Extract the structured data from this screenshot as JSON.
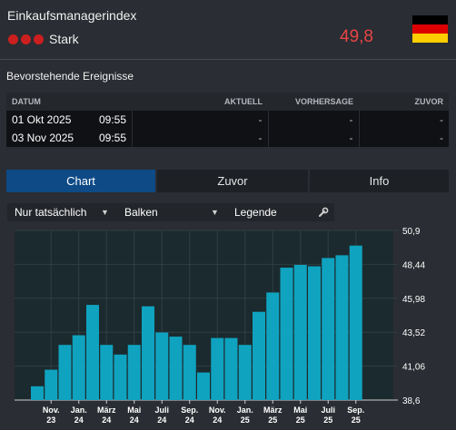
{
  "header": {
    "title": "Einkaufsmanagerindex",
    "importance_label": "Stark",
    "value": "49,8",
    "flag_colors": [
      "#000000",
      "#dd0000",
      "#ffce00"
    ]
  },
  "events": {
    "title": "Bevorstehende Ereignisse",
    "columns": [
      "DATUM",
      "",
      "AKTUELL",
      "VORHERSAGE",
      "ZUVOR"
    ],
    "rows": [
      {
        "date": "01 Okt 2025",
        "time": "09:55",
        "actual": "-",
        "forecast": "-",
        "previous": "-"
      },
      {
        "date": "03 Nov 2025",
        "time": "09:55",
        "actual": "-",
        "forecast": "-",
        "previous": "-"
      }
    ]
  },
  "tabs": [
    {
      "label": "Chart"
    },
    {
      "label": "Zuvor"
    },
    {
      "label": "Info"
    }
  ],
  "toolbar": {
    "filter": "Nur tatsächlich",
    "type": "Balken",
    "legend": "Legende",
    "wrench_icon": "wrench-icon",
    "caret_icon": "caret-down-icon"
  },
  "chart_data": {
    "type": "bar",
    "color": "#0fa3c0",
    "y_ticks": [
      "50,9",
      "48,44",
      "45,98",
      "43,52",
      "41,06",
      "38,6"
    ],
    "ylim": [
      38.6,
      50.9
    ],
    "x_labels": [
      {
        "index": 1,
        "line1": "Nov.",
        "line2": "23"
      },
      {
        "index": 3,
        "line1": "Jan.",
        "line2": "24"
      },
      {
        "index": 5,
        "line1": "März",
        "line2": "24"
      },
      {
        "index": 7,
        "line1": "Mai",
        "line2": "24"
      },
      {
        "index": 9,
        "line1": "Juli",
        "line2": "24"
      },
      {
        "index": 11,
        "line1": "Sep.",
        "line2": "24"
      },
      {
        "index": 13,
        "line1": "Nov.",
        "line2": "24"
      },
      {
        "index": 15,
        "line1": "Jan.",
        "line2": "25"
      },
      {
        "index": 17,
        "line1": "März",
        "line2": "25"
      },
      {
        "index": 19,
        "line1": "Mai",
        "line2": "25"
      },
      {
        "index": 21,
        "line1": "Juli",
        "line2": "25"
      },
      {
        "index": 23,
        "line1": "Sep.",
        "line2": "25"
      }
    ],
    "values": [
      39.6,
      40.8,
      42.6,
      43.3,
      45.5,
      42.6,
      41.9,
      42.6,
      45.4,
      43.5,
      43.2,
      42.6,
      40.6,
      43.1,
      43.1,
      42.6,
      45.0,
      46.4,
      48.2,
      48.4,
      48.3,
      48.9,
      49.1,
      49.8
    ]
  }
}
